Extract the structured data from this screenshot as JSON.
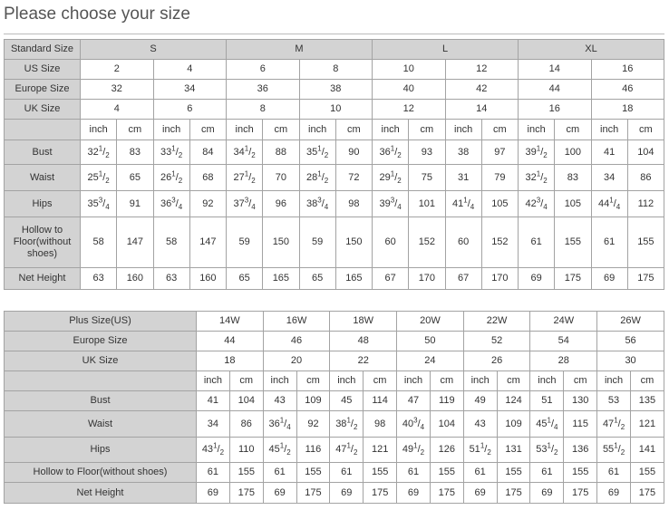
{
  "title": "Please choose your size",
  "standard_table": {
    "standard_label": "Standard Size",
    "standard_sizes": [
      "S",
      "M",
      "L",
      "XL"
    ],
    "rows": [
      {
        "label": "US Size",
        "values": [
          "2",
          "4",
          "6",
          "8",
          "10",
          "12",
          "14",
          "16"
        ]
      },
      {
        "label": "Europe Size",
        "values": [
          "32",
          "34",
          "36",
          "38",
          "40",
          "42",
          "44",
          "46"
        ]
      },
      {
        "label": "UK Size",
        "values": [
          "4",
          "6",
          "8",
          "10",
          "12",
          "14",
          "16",
          "18"
        ]
      }
    ],
    "units": [
      "inch",
      "cm"
    ],
    "measurements": [
      {
        "label": "Bust",
        "values": [
          "32 1/2",
          "83",
          "33 1/2",
          "84",
          "34 1/2",
          "88",
          "35 1/2",
          "90",
          "36 1/2",
          "93",
          "38",
          "97",
          "39 1/2",
          "100",
          "41",
          "104"
        ]
      },
      {
        "label": "Waist",
        "values": [
          "25 1/2",
          "65",
          "26 1/2",
          "68",
          "27 1/2",
          "70",
          "28 1/2",
          "72",
          "29 1/2",
          "75",
          "31",
          "79",
          "32 1/2",
          "83",
          "34",
          "86"
        ]
      },
      {
        "label": "Hips",
        "values": [
          "35 3/4",
          "91",
          "36 3/4",
          "92",
          "37 3/4",
          "96",
          "38 3/4",
          "98",
          "39 3/4",
          "101",
          "41 1/4",
          "105",
          "42 3/4",
          "105",
          "44 1/4",
          "112"
        ]
      },
      {
        "label": "Hollow to Floor(without shoes)",
        "values": [
          "58",
          "147",
          "58",
          "147",
          "59",
          "150",
          "59",
          "150",
          "60",
          "152",
          "60",
          "152",
          "61",
          "155",
          "61",
          "155"
        ]
      },
      {
        "label": "Net Height",
        "values": [
          "63",
          "160",
          "63",
          "160",
          "65",
          "165",
          "65",
          "165",
          "67",
          "170",
          "67",
          "170",
          "69",
          "175",
          "69",
          "175"
        ]
      }
    ]
  },
  "plus_table": {
    "rows": [
      {
        "label": "Plus Size(US)",
        "values": [
          "14W",
          "16W",
          "18W",
          "20W",
          "22W",
          "24W",
          "26W"
        ]
      },
      {
        "label": "Europe Size",
        "values": [
          "44",
          "46",
          "48",
          "50",
          "52",
          "54",
          "56"
        ]
      },
      {
        "label": "UK Size",
        "values": [
          "18",
          "20",
          "22",
          "24",
          "26",
          "28",
          "30"
        ]
      }
    ],
    "units": [
      "inch",
      "cm"
    ],
    "measurements": [
      {
        "label": "Bust",
        "values": [
          "41",
          "104",
          "43",
          "109",
          "45",
          "114",
          "47",
          "119",
          "49",
          "124",
          "51",
          "130",
          "53",
          "135"
        ]
      },
      {
        "label": "Waist",
        "values": [
          "34",
          "86",
          "36 1/4",
          "92",
          "38 1/2",
          "98",
          "40 3/4",
          "104",
          "43",
          "109",
          "45 1/4",
          "115",
          "47 1/2",
          "121"
        ]
      },
      {
        "label": "Hips",
        "values": [
          "43 1/2",
          "110",
          "45 1/2",
          "116",
          "47 1/2",
          "121",
          "49 1/2",
          "126",
          "51 1/2",
          "131",
          "53 1/2",
          "136",
          "55 1/2",
          "141"
        ]
      },
      {
        "label": "Hollow to Floor(without shoes)",
        "values": [
          "61",
          "155",
          "61",
          "155",
          "61",
          "155",
          "61",
          "155",
          "61",
          "155",
          "61",
          "155",
          "61",
          "155"
        ]
      },
      {
        "label": "Net Height",
        "values": [
          "69",
          "175",
          "69",
          "175",
          "69",
          "175",
          "69",
          "175",
          "69",
          "175",
          "69",
          "175",
          "69",
          "175"
        ]
      }
    ]
  }
}
